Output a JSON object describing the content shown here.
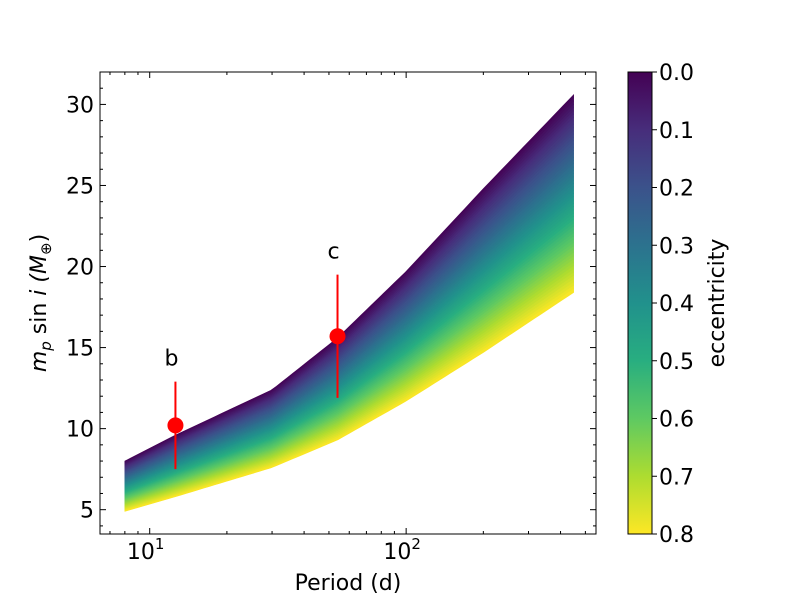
{
  "chart_data": {
    "type": "scatter",
    "title": "",
    "xlabel": "Period (d)",
    "ylabel_main": "m",
    "ylabel_sub": "p",
    "ylabel_mid": " sin ",
    "ylabel_i": "i",
    "ylabel_unit_open": " (M",
    "ylabel_unit_sub": "⊕",
    "ylabel_close": ")",
    "xscale": "log",
    "xlim": [
      6.4,
      550
    ],
    "ylim": [
      3.5,
      32
    ],
    "x_ticks": [
      {
        "value": 10,
        "base": "10",
        "exp": "1"
      },
      {
        "value": 100,
        "base": "10",
        "exp": "2"
      }
    ],
    "y_ticks": [
      5,
      10,
      15,
      20,
      25,
      30
    ],
    "y_tick_labels": [
      "5",
      "10",
      "15",
      "20",
      "25",
      "30"
    ],
    "colorbar": {
      "label": "eccentricity",
      "range": [
        0.0,
        0.8
      ],
      "ticks": [
        0.0,
        0.1,
        0.2,
        0.3,
        0.4,
        0.5,
        0.6,
        0.7,
        0.8
      ],
      "tick_labels": [
        "0.0",
        "0.1",
        "0.2",
        "0.3",
        "0.4",
        "0.5",
        "0.6",
        "0.7",
        "0.8"
      ],
      "colormap": "viridis"
    },
    "band": {
      "period_range": [
        8,
        450
      ],
      "upper_curve": [
        [
          8,
          8.0
        ],
        [
          12.6,
          9.6
        ],
        [
          30,
          12.4
        ],
        [
          54,
          15.6
        ],
        [
          100,
          19.7
        ],
        [
          200,
          24.8
        ],
        [
          450,
          30.6
        ]
      ],
      "lower_curve": [
        [
          8,
          4.9
        ],
        [
          12.6,
          5.8
        ],
        [
          30,
          7.6
        ],
        [
          54,
          9.3
        ],
        [
          100,
          11.7
        ],
        [
          200,
          14.7
        ],
        [
          450,
          18.4
        ]
      ],
      "ecc_samples": 60
    },
    "planets": [
      {
        "name": "b",
        "period": 12.6,
        "mass": 10.2,
        "err_low": 7.5,
        "err_high": 12.9,
        "color": "#ff0000"
      },
      {
        "name": "c",
        "period": 54.0,
        "mass": 15.7,
        "err_low": 11.9,
        "err_high": 19.5,
        "color": "#ff0000"
      }
    ]
  }
}
